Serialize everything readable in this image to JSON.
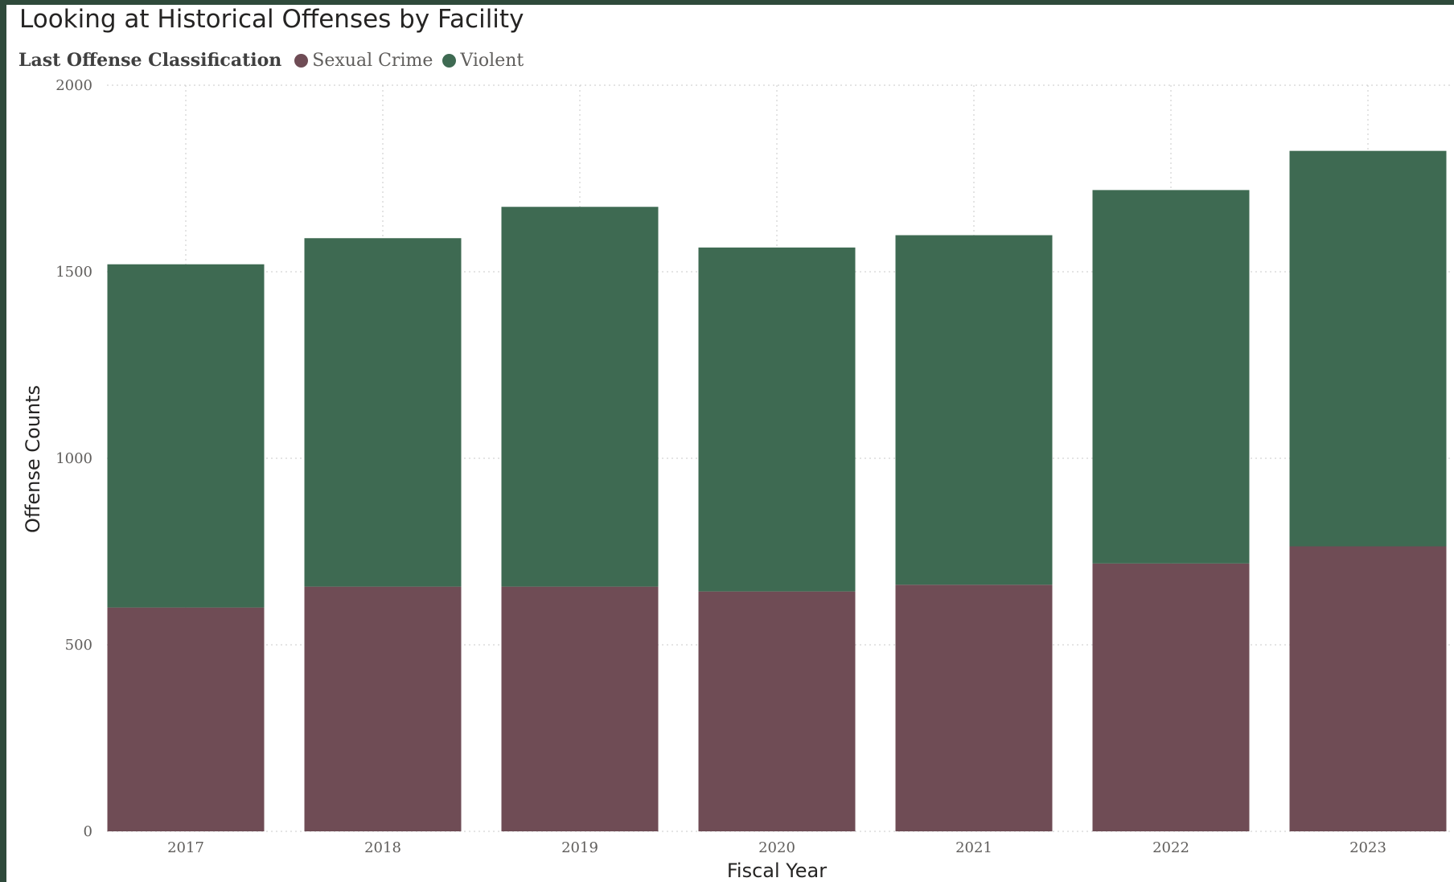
{
  "chart_data": {
    "type": "bar",
    "stacked": true,
    "title": "Looking at Historical Offenses by Facility",
    "xlabel": "Fiscal Year",
    "ylabel": "Offense Counts",
    "legend_title": "Last Offense Classification",
    "legend_position": "top-left",
    "grid": true,
    "ylim": [
      0,
      2000
    ],
    "yticks": [
      "2000",
      "1500",
      "1000",
      "500",
      "0"
    ],
    "categories": [
      "2017",
      "2018",
      "2019",
      "2020",
      "2021",
      "2022",
      "2023"
    ],
    "series": [
      {
        "name": "Sexual Crime",
        "color": "#6f4c55",
        "values": [
          600,
          656,
          656,
          643,
          661,
          718,
          764
        ]
      },
      {
        "name": "Violent",
        "color": "#3e6a52",
        "values": [
          920,
          934,
          1018,
          922,
          937,
          1001,
          1060
        ]
      }
    ]
  }
}
